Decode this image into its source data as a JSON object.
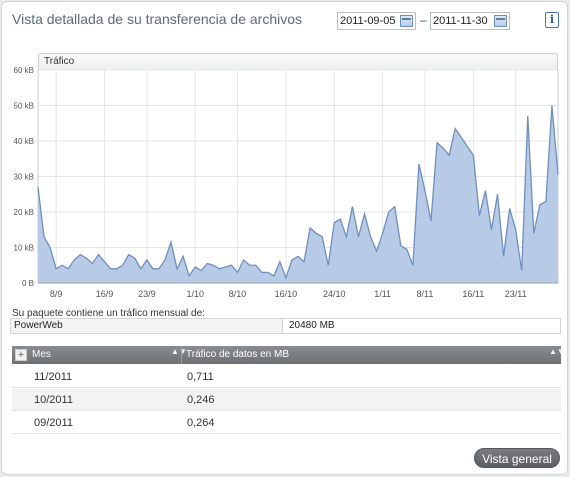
{
  "header": {
    "title": "Vista detallada de su transferencia de archivos",
    "date_from": "2011-09-05",
    "date_separator": "–",
    "date_to": "2011-11-30",
    "info_label": "i"
  },
  "chart_data": {
    "type": "area",
    "legend": "Tráfico",
    "ylabel": "",
    "xlabel": "",
    "ylim": [
      0,
      60
    ],
    "y_unit": "kB",
    "y_ticks": [
      0,
      10,
      20,
      30,
      40,
      50,
      60
    ],
    "y_tick_labels": [
      "0 B",
      "10 kB",
      "20 kB",
      "30 kB",
      "40 kB",
      "50 kB",
      "60 kB"
    ],
    "x_start": "2011-09-05",
    "x_end": "2011-11-30",
    "x_ticks": [
      {
        "date": "2011-09-08",
        "label": "8/9"
      },
      {
        "date": "2011-09-16",
        "label": "16/9"
      },
      {
        "date": "2011-09-23",
        "label": "23/9"
      },
      {
        "date": "2011-10-01",
        "label": "1/10"
      },
      {
        "date": "2011-10-08",
        "label": "8/10"
      },
      {
        "date": "2011-10-16",
        "label": "16/10"
      },
      {
        "date": "2011-10-24",
        "label": "24/10"
      },
      {
        "date": "2011-11-01",
        "label": "1/11"
      },
      {
        "date": "2011-11-08",
        "label": "8/11"
      },
      {
        "date": "2011-11-16",
        "label": "16/11"
      },
      {
        "date": "2011-11-23",
        "label": "23/11"
      }
    ],
    "grid": true,
    "fill_color": "#b8cbe6",
    "line_color": "#6f8fbf",
    "series": [
      {
        "values": [
          27,
          13,
          10,
          4,
          5,
          4,
          6.5,
          8,
          7,
          5.5,
          8,
          6,
          4,
          4,
          5,
          8,
          7,
          4,
          6.5,
          4,
          4,
          6.5,
          11.5,
          4,
          7.5,
          2,
          4.5,
          3.5,
          5.5,
          5,
          4,
          4.5,
          5,
          3,
          6.5,
          5,
          5,
          3,
          3,
          2,
          6,
          1.5,
          6.5,
          7.5,
          6,
          15.5,
          14,
          13,
          5,
          17,
          18,
          13,
          21.5,
          13,
          19.5,
          13,
          9,
          14,
          20,
          21.5,
          10.5,
          9.5,
          5,
          33.5,
          26,
          17.5,
          39.5,
          38,
          36,
          43.5,
          41,
          38.5,
          36,
          19,
          26,
          15,
          25,
          7.5,
          21,
          15,
          3.5,
          47,
          14,
          22,
          23,
          50,
          30.5
        ]
      }
    ]
  },
  "quota": {
    "label": "Su paquete contiene un tráfico mensual de:",
    "product": "PowerWeb",
    "value": "20480 MB"
  },
  "table": {
    "add_label": "+",
    "sort_glyph": "▲▼",
    "columns": [
      "Mes",
      "Tráfico de datos en MB"
    ],
    "rows": [
      {
        "month": "11/2011",
        "traffic": "0,711"
      },
      {
        "month": "10/2011",
        "traffic": "0,246"
      },
      {
        "month": "09/2011",
        "traffic": "0,264"
      }
    ]
  },
  "footer": {
    "overview_button": "Vista general"
  }
}
